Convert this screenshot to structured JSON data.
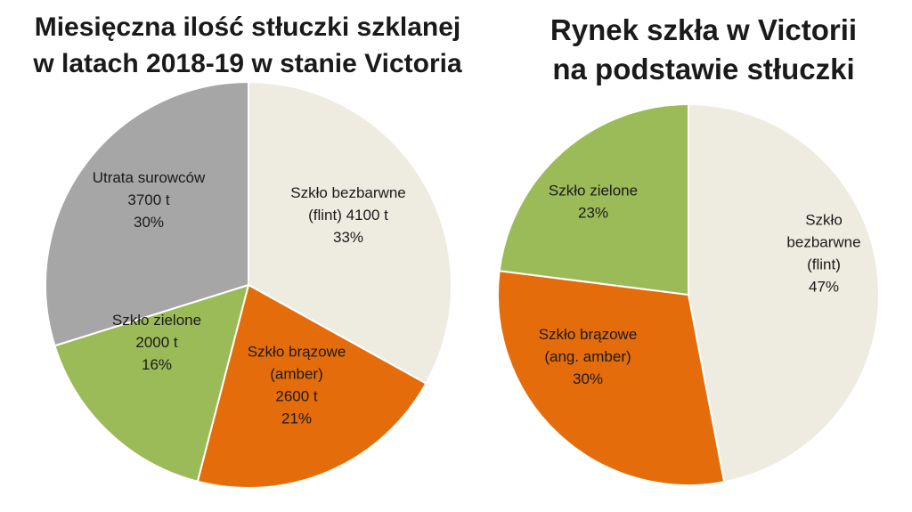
{
  "chart_data": [
    {
      "type": "pie",
      "title_lines": [
        "Miesięczna ilość stłuczki szklanej",
        "w latach 2018-19  w stanie Victoria"
      ],
      "slices": [
        {
          "label_lines": [
            "Szkło bezbarwne",
            "(flint) 4100 t",
            "33%"
          ],
          "value": 4100,
          "percent": 33,
          "color": "#eeece1"
        },
        {
          "label_lines": [
            "Szkło brązowe",
            "(amber)",
            "2600 t",
            "21%"
          ],
          "value": 2600,
          "percent": 21,
          "color": "#e46c0a"
        },
        {
          "label_lines": [
            "Szkło zielone",
            "2000 t",
            "16%"
          ],
          "value": 2000,
          "percent": 16,
          "color": "#9bbb59"
        },
        {
          "label_lines": [
            "Utrata surowców",
            "3700 t",
            "30%"
          ],
          "value": 3700,
          "percent": 30,
          "color": "#a6a6a6"
        }
      ]
    },
    {
      "type": "pie",
      "title_lines": [
        "Rynek szkła w Victorii",
        "na podstawie stłuczki"
      ],
      "slices": [
        {
          "label_lines": [
            "Szkło",
            "bezbarwne",
            "(flint)",
            "47%"
          ],
          "value": 47,
          "percent": 47,
          "color": "#eeece1"
        },
        {
          "label_lines": [
            "Szkło brązowe",
            "(ang. amber)",
            "30%"
          ],
          "value": 30,
          "percent": 30,
          "color": "#e46c0a"
        },
        {
          "label_lines": [
            "Szkło zielone",
            "23%"
          ],
          "value": 23,
          "percent": 23,
          "color": "#9bbb59"
        }
      ]
    }
  ]
}
